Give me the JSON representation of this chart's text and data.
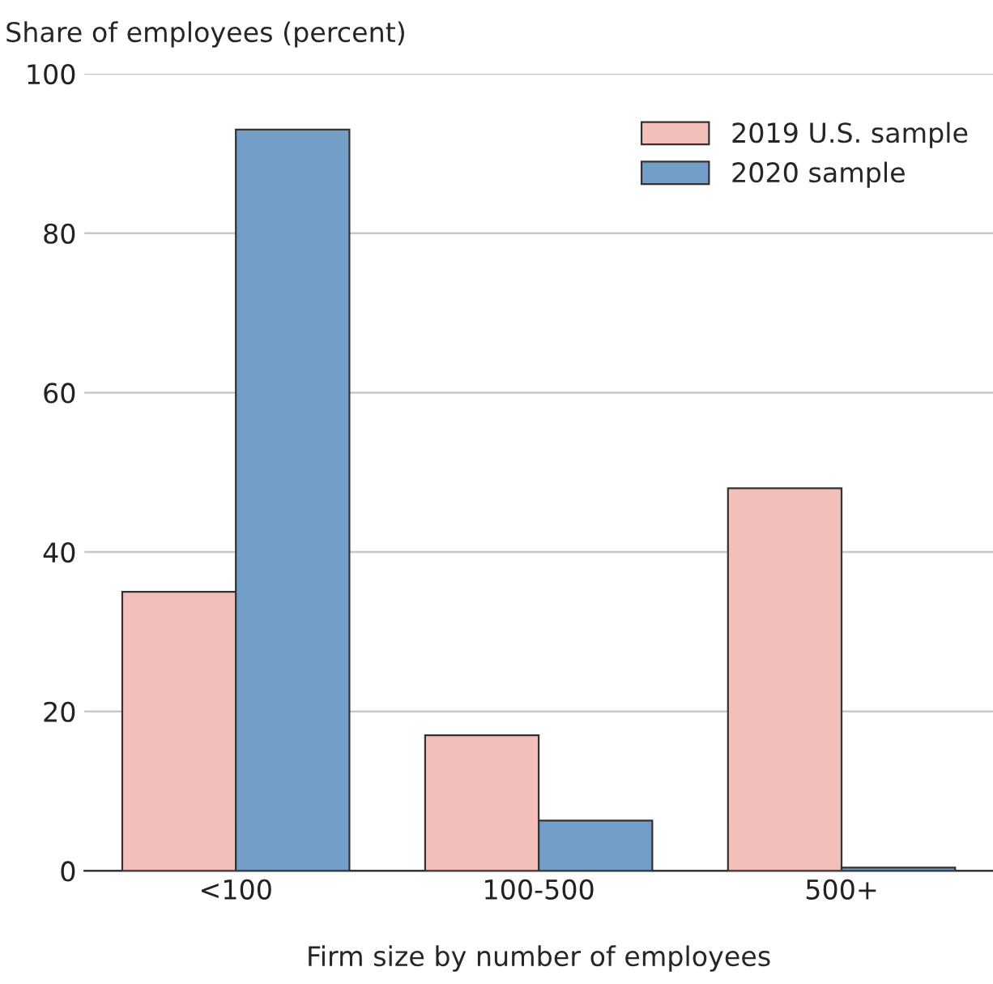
{
  "chart_data": {
    "type": "bar",
    "ylabel": "Share of employees (percent)",
    "xlabel": "Firm size by number of employees",
    "categories": [
      "<100",
      "100-500",
      "500+"
    ],
    "series": [
      {
        "name": "2019 U.S. sample",
        "color": "#f2bfbb",
        "values": [
          35,
          17,
          48
        ]
      },
      {
        "name": "2020 sample",
        "color": "#729ec8",
        "values": [
          93,
          6.3,
          0.4
        ]
      }
    ],
    "ylim": [
      0,
      100
    ],
    "yticks": [
      0,
      20,
      40,
      60,
      80,
      100
    ],
    "grid": "y",
    "legend": "top right"
  }
}
